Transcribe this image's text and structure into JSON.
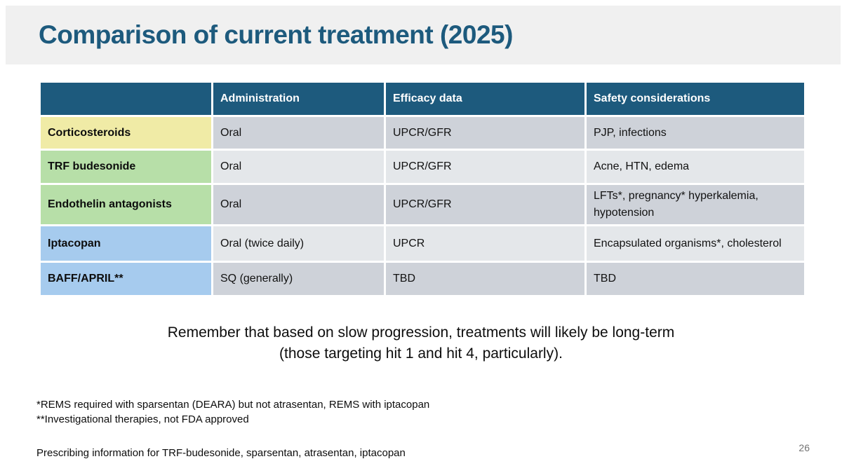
{
  "title": "Comparison of current treatment (2025)",
  "colors": {
    "accent_teal": "#1d5a7d",
    "banner_bg": "#f0f0f0",
    "category_yellow": "#f0eba6",
    "category_green": "#b7dfa8",
    "category_blue": "#a6cbee",
    "row_dark": "#ced2d9",
    "row_light": "#e4e7ea"
  },
  "table": {
    "columns": [
      "",
      "Administration",
      "Efficacy data",
      "Safety considerations"
    ],
    "rows": [
      {
        "name": "Corticosteroids",
        "category_color": "category_yellow",
        "administration": "Oral",
        "efficacy": "UPCR/GFR",
        "safety": "PJP, infections"
      },
      {
        "name": "TRF budesonide",
        "category_color": "category_green",
        "administration": "Oral",
        "efficacy": "UPCR/GFR",
        "safety": "Acne, HTN, edema"
      },
      {
        "name": "Endothelin antagonists",
        "category_color": "category_green",
        "administration": "Oral",
        "efficacy": "UPCR/GFR",
        "safety": "LFTs*, pregnancy* hyperkalemia, hypotension"
      },
      {
        "name": "Iptacopan",
        "category_color": "category_blue",
        "administration": "Oral (twice daily)",
        "efficacy": "UPCR",
        "safety": "Encapsulated organisms*, cholesterol"
      },
      {
        "name": "BAFF/APRIL**",
        "category_color": "category_blue",
        "administration": "SQ (generally)",
        "efficacy": "TBD",
        "safety": "TBD"
      }
    ]
  },
  "note": {
    "line1": "Remember that based on slow progression, treatments will likely be long-term",
    "line2": "(those targeting hit 1 and hit 4, particularly)."
  },
  "footnotes": [
    "*REMS required with sparsentan (DEARA) but not atrasentan, REMS with iptacopan",
    "**Investigational therapies, not FDA approved"
  ],
  "prescribing": "Prescribing information for TRF-budesonide, sparsentan, atrasentan, iptacopan",
  "page_number": "26"
}
